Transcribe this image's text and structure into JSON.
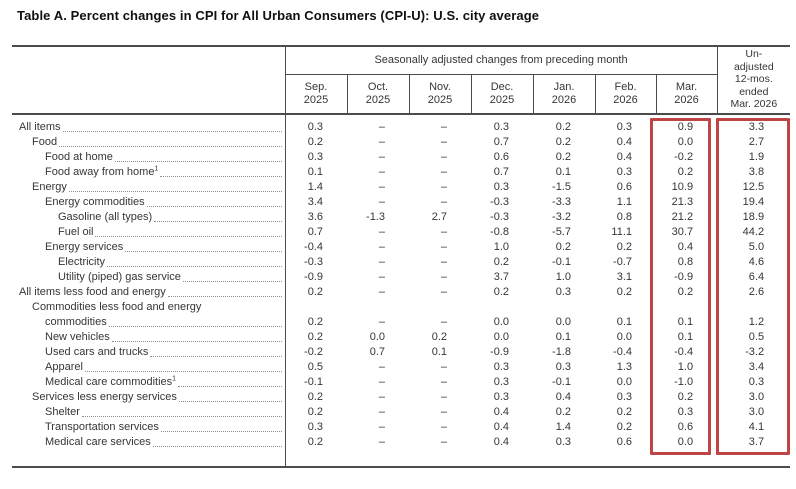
{
  "title": "Table A. Percent changes in CPI for All Urban Consumers (CPI-U): U.S. city average",
  "table": {
    "header": {
      "group_label": "Seasonally adjusted changes from preceding month",
      "months": [
        {
          "m": "Sep.",
          "y": "2025"
        },
        {
          "m": "Oct.",
          "y": "2025"
        },
        {
          "m": "Nov.",
          "y": "2025"
        },
        {
          "m": "Dec.",
          "y": "2025"
        },
        {
          "m": "Jan.",
          "y": "2026"
        },
        {
          "m": "Feb.",
          "y": "2026"
        },
        {
          "m": "Mar.",
          "y": "2026"
        }
      ],
      "unadjusted_label": "Un-\nadjusted\n12-mos.\nended\nMar. 2026"
    },
    "rows": [
      {
        "label": "All items",
        "indent": 0,
        "values": [
          "0.3",
          "–",
          "–",
          "0.3",
          "0.2",
          "0.3",
          "0.9"
        ],
        "yoy": "3.3"
      },
      {
        "label": "Food",
        "indent": 1,
        "values": [
          "0.2",
          "–",
          "–",
          "0.7",
          "0.2",
          "0.4",
          "0.0"
        ],
        "yoy": "2.7"
      },
      {
        "label": "Food at home",
        "indent": 2,
        "values": [
          "0.3",
          "–",
          "–",
          "0.6",
          "0.2",
          "0.4",
          "-0.2"
        ],
        "yoy": "1.9"
      },
      {
        "label": "Food away from home",
        "sup": "1",
        "indent": 2,
        "values": [
          "0.1",
          "–",
          "–",
          "0.7",
          "0.1",
          "0.3",
          "0.2"
        ],
        "yoy": "3.8"
      },
      {
        "label": "Energy",
        "indent": 1,
        "values": [
          "1.4",
          "–",
          "–",
          "0.3",
          "-1.5",
          "0.6",
          "10.9"
        ],
        "yoy": "12.5"
      },
      {
        "label": "Energy commodities",
        "indent": 2,
        "values": [
          "3.4",
          "–",
          "–",
          "-0.3",
          "-3.3",
          "1.1",
          "21.3"
        ],
        "yoy": "19.4"
      },
      {
        "label": "Gasoline (all types)",
        "indent": 3,
        "values": [
          "3.6",
          "-1.3",
          "2.7",
          "-0.3",
          "-3.2",
          "0.8",
          "21.2"
        ],
        "yoy": "18.9"
      },
      {
        "label": "Fuel oil",
        "indent": 3,
        "values": [
          "0.7",
          "–",
          "–",
          "-0.8",
          "-5.7",
          "11.1",
          "30.7"
        ],
        "yoy": "44.2"
      },
      {
        "label": "Energy services",
        "indent": 2,
        "values": [
          "-0.4",
          "–",
          "–",
          "1.0",
          "0.2",
          "0.2",
          "0.4"
        ],
        "yoy": "5.0"
      },
      {
        "label": "Electricity",
        "indent": 3,
        "values": [
          "-0.3",
          "–",
          "–",
          "0.2",
          "-0.1",
          "-0.7",
          "0.8"
        ],
        "yoy": "4.6"
      },
      {
        "label": "Utility (piped) gas service",
        "indent": 3,
        "values": [
          "-0.9",
          "–",
          "–",
          "3.7",
          "1.0",
          "3.1",
          "-0.9"
        ],
        "yoy": "6.4"
      },
      {
        "label": "All items less food and energy",
        "indent": 0,
        "values": [
          "0.2",
          "–",
          "–",
          "0.2",
          "0.3",
          "0.2",
          "0.2"
        ],
        "yoy": "2.6"
      },
      {
        "label": "Commodities less food and energy",
        "label2": "commodities",
        "indent": 1,
        "values": [
          "0.2",
          "–",
          "–",
          "0.0",
          "0.0",
          "0.1",
          "0.1"
        ],
        "yoy": "1.2"
      },
      {
        "label": "New vehicles",
        "indent": 2,
        "values": [
          "0.2",
          "0.0",
          "0.2",
          "0.0",
          "0.1",
          "0.0",
          "0.1"
        ],
        "yoy": "0.5"
      },
      {
        "label": "Used cars and trucks",
        "indent": 2,
        "values": [
          "-0.2",
          "0.7",
          "0.1",
          "-0.9",
          "-1.8",
          "-0.4",
          "-0.4"
        ],
        "yoy": "-3.2"
      },
      {
        "label": "Apparel",
        "indent": 2,
        "values": [
          "0.5",
          "–",
          "–",
          "0.3",
          "0.3",
          "1.3",
          "1.0"
        ],
        "yoy": "3.4"
      },
      {
        "label": "Medical care commodities",
        "sup": "1",
        "indent": 2,
        "values": [
          "-0.1",
          "–",
          "–",
          "0.3",
          "-0.1",
          "0.0",
          "-1.0"
        ],
        "yoy": "0.3"
      },
      {
        "label": "Services less energy services",
        "indent": 1,
        "values": [
          "0.2",
          "–",
          "–",
          "0.3",
          "0.4",
          "0.3",
          "0.2"
        ],
        "yoy": "3.0"
      },
      {
        "label": "Shelter",
        "indent": 2,
        "values": [
          "0.2",
          "–",
          "–",
          "0.4",
          "0.2",
          "0.2",
          "0.3"
        ],
        "yoy": "3.0"
      },
      {
        "label": "Transportation services",
        "indent": 2,
        "values": [
          "0.3",
          "–",
          "–",
          "0.4",
          "1.4",
          "0.2",
          "0.6"
        ],
        "yoy": "4.1"
      },
      {
        "label": "Medical care services",
        "indent": 2,
        "values": [
          "0.2",
          "–",
          "–",
          "0.4",
          "0.3",
          "0.6",
          "0.0"
        ],
        "yoy": "3.7"
      }
    ],
    "highlights": {
      "color": "#bf4444",
      "mar_2026_column": "Mar. 2026",
      "unadjusted_column": "Un-adjusted 12-mos. ended Mar. 2026"
    }
  }
}
